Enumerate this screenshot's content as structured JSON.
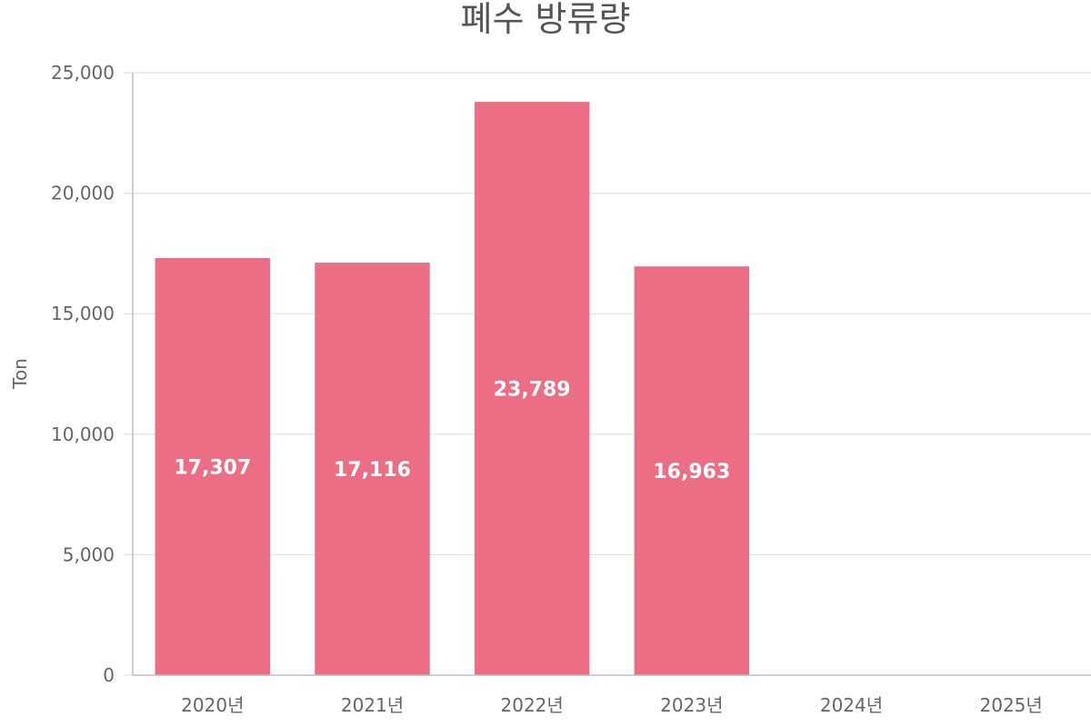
{
  "chart_data": {
    "type": "bar",
    "title": "폐수 방류량",
    "xlabel": "",
    "ylabel": "Ton",
    "categories": [
      "2020년",
      "2021년",
      "2022년",
      "2023년",
      "2024년",
      "2025년"
    ],
    "values": [
      17307,
      17116,
      23789,
      16963,
      null,
      null
    ],
    "value_labels": [
      "17,307",
      "17,116",
      "23,789",
      "16,963",
      "",
      ""
    ],
    "ylim": [
      0,
      25000
    ],
    "yticks": [
      0,
      5000,
      10000,
      15000,
      20000,
      25000
    ],
    "ytick_labels": [
      "0",
      "5,000",
      "10,000",
      "15,000",
      "20,000",
      "25,000"
    ],
    "grid": true,
    "bar_color": "#eb6e85"
  }
}
